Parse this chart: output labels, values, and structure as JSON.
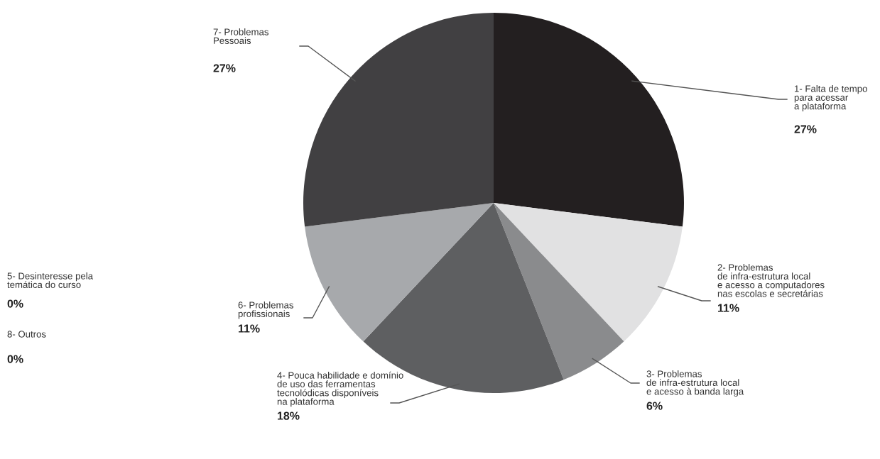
{
  "chart_data": {
    "type": "pie",
    "categories": [
      "1- Falta de tempo\npara acessar\na plataforma",
      "2- Problemas\nde infra-estrutura local\ne acesso a computadores\nnas escolas e secretárias",
      "3- Problemas\nde infra-estrutura local\ne acesso à banda larga",
      "4- Pouca habilidade e domínio\nde uso das ferramentas\ntecnolódicas disponíveis\nna plataforma",
      "5- Desinteresse pela\ntemática do curso",
      "6- Problemas\nprofissionais",
      "7- Problemas\nPessoais",
      "8- Outros"
    ],
    "values": [
      27,
      11,
      6,
      18,
      0,
      11,
      27,
      0
    ],
    "value_labels": [
      "27%",
      "11%",
      "6%",
      "18%",
      "0%",
      "11%",
      "27%",
      "0%"
    ],
    "colors": [
      "#231f20",
      "#e1e1e2",
      "#8a8b8d",
      "#5e5f61",
      "#ffffff",
      "#a7a9ac",
      "#414042",
      "#ffffff"
    ],
    "legend": false
  }
}
